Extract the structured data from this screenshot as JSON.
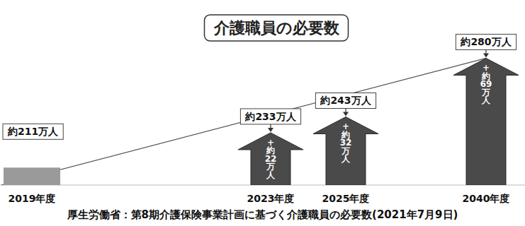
{
  "chart_data": {
    "type": "bar",
    "title": "介護職員の必要数",
    "categories": [
      "2019年度",
      "2023年度",
      "2025年度",
      "2040年度"
    ],
    "values": [
      211,
      233,
      243,
      280
    ],
    "value_labels": [
      "約211万人",
      "約233万人",
      "約243万人",
      "約280万人"
    ],
    "increase_labels": [
      null,
      "+約22万人",
      "+約32万人",
      "+約69万人"
    ],
    "source": "厚生労働省：第8期介護保険事業計画に基づく介護職員の必要数(2021年7月9日)",
    "ylim": [
      200,
      290
    ],
    "tick_labels": "x",
    "data_labels": true,
    "colors": [
      "#9a9a9a",
      "#4a4a4a",
      "#4a4a4a",
      "#4a4a4a"
    ]
  }
}
